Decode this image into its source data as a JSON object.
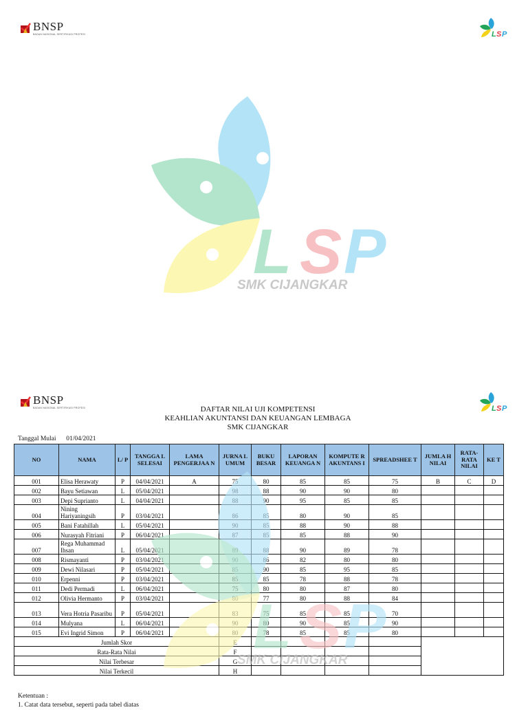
{
  "page1": {
    "header_left_logo": {
      "name": "BNSP",
      "subtitle": "BADAN NASIONAL SERTIFIKASI PROFESI"
    },
    "header_right_logo": {
      "name": "LSP"
    },
    "center_logo": {
      "name": "LSP",
      "caption": "SMK CIJANGKAR"
    }
  },
  "page2": {
    "header_left_logo": {
      "name": "BNSP",
      "subtitle": "BADAN NASIONAL SERTIFIKASI PROFESI"
    },
    "header_right_logo": {
      "name": "LSP"
    },
    "title": {
      "line1": "DAFTAR NILAI UJI KOMPETENSI",
      "line2": "KEAHLIAN AKUNTANSI DAN KEUANGAN LEMBAGA",
      "line3": "SMK CIJANGKAR"
    },
    "start_date": {
      "label": "Tanggal Mulai",
      "value": "01/04/2021"
    },
    "table": {
      "headers": [
        "NO",
        "NAMA",
        "L/ P",
        "TANGGA L SELESAI",
        "LAMA PENGERJAA N",
        "JURNA L UMUM",
        "BUKU BESAR",
        "LAPORAN KEUANGA N",
        "KOMPUTE R AKUNTANS I",
        "SPREADSHEE T",
        "JUMLA H NILAI",
        "RATA-RATA NILAI",
        "KE T"
      ],
      "rows": [
        {
          "no": "001",
          "nama": "Elisa Herawaty",
          "lp": "P",
          "tanggal": "04/04/2021",
          "lama": "A",
          "jurnal": "75",
          "buku": "80",
          "laporan": "85",
          "komputer": "85",
          "spreadsheet": "75",
          "jumlah": "B",
          "rata": "C",
          "ket": "D"
        },
        {
          "no": "002",
          "nama": "Bayu Setiawan",
          "lp": "L",
          "tanggal": "05/04/2021",
          "lama": "",
          "jurnal": "98",
          "buku": "88",
          "laporan": "90",
          "komputer": "90",
          "spreadsheet": "80",
          "jumlah": "",
          "rata": "",
          "ket": ""
        },
        {
          "no": "003",
          "nama": "Depi Suprianto",
          "lp": "L",
          "tanggal": "04/04/2021",
          "lama": "",
          "jurnal": "88",
          "buku": "90",
          "laporan": "95",
          "komputer": "85",
          "spreadsheet": "85",
          "jumlah": "",
          "rata": "",
          "ket": ""
        },
        {
          "no": "004",
          "nama": "Nining Hariyaningsih",
          "lp": "P",
          "tanggal": "03/04/2021",
          "lama": "",
          "jurnal": "86",
          "buku": "85",
          "laporan": "80",
          "komputer": "90",
          "spreadsheet": "85",
          "jumlah": "",
          "rata": "",
          "ket": ""
        },
        {
          "no": "005",
          "nama": "Bani Fatahillah",
          "lp": "L",
          "tanggal": "05/04/2021",
          "lama": "",
          "jurnal": "90",
          "buku": "85",
          "laporan": "88",
          "komputer": "90",
          "spreadsheet": "88",
          "jumlah": "",
          "rata": "",
          "ket": ""
        },
        {
          "no": "006",
          "nama": "Nurasyah Fitriani",
          "lp": "P",
          "tanggal": "06/04/2021",
          "lama": "",
          "jurnal": "87",
          "buku": "85",
          "laporan": "85",
          "komputer": "88",
          "spreadsheet": "90",
          "jumlah": "",
          "rata": "",
          "ket": ""
        },
        {
          "no": "007",
          "nama": "Rega Muhammad Ihsan",
          "lp": "L",
          "tanggal": "05/04/2021",
          "lama": "",
          "jurnal": "89",
          "buku": "88",
          "laporan": "90",
          "komputer": "89",
          "spreadsheet": "78",
          "jumlah": "",
          "rata": "",
          "ket": ""
        },
        {
          "no": "008",
          "nama": "Rismayanti",
          "lp": "P",
          "tanggal": "03/04/2021",
          "lama": "",
          "jurnal": "90",
          "buku": "86",
          "laporan": "82",
          "komputer": "80",
          "spreadsheet": "80",
          "jumlah": "",
          "rata": "",
          "ket": ""
        },
        {
          "no": "009",
          "nama": "Dewi Nilasari",
          "lp": "P",
          "tanggal": "05/04/2021",
          "lama": "",
          "jurnal": "85",
          "buku": "90",
          "laporan": "85",
          "komputer": "95",
          "spreadsheet": "85",
          "jumlah": "",
          "rata": "",
          "ket": ""
        },
        {
          "no": "010",
          "nama": "Erpenni",
          "lp": "P",
          "tanggal": "03/04/2021",
          "lama": "",
          "jurnal": "85",
          "buku": "85",
          "laporan": "78",
          "komputer": "88",
          "spreadsheet": "78",
          "jumlah": "",
          "rata": "",
          "ket": ""
        },
        {
          "no": "011",
          "nama": "Dedi Permadi",
          "lp": "L",
          "tanggal": "06/04/2021",
          "lama": "",
          "jurnal": "75",
          "buku": "80",
          "laporan": "80",
          "komputer": "87",
          "spreadsheet": "80",
          "jumlah": "",
          "rata": "",
          "ket": ""
        },
        {
          "no": "012",
          "nama": "Olivia Hermanto",
          "lp": "P",
          "tanggal": "03/04/2021",
          "lama": "",
          "jurnal": "80",
          "buku": "77",
          "laporan": "80",
          "komputer": "88",
          "spreadsheet": "84",
          "jumlah": "",
          "rata": "",
          "ket": ""
        },
        {
          "no": "013",
          "nama": "Vera Hotria Pasaribu",
          "lp": "P",
          "tanggal": "05/04/2021",
          "lama": "",
          "jurnal": "83",
          "buku": "75",
          "laporan": "85",
          "komputer": "85",
          "spreadsheet": "70",
          "jumlah": "",
          "rata": "",
          "ket": ""
        },
        {
          "no": "014",
          "nama": "Mulyana",
          "lp": "L",
          "tanggal": "06/04/2021",
          "lama": "",
          "jurnal": "90",
          "buku": "80",
          "laporan": "90",
          "komputer": "85",
          "spreadsheet": "90",
          "jumlah": "",
          "rata": "",
          "ket": ""
        },
        {
          "no": "015",
          "nama": "Evi Ingrid Simon",
          "lp": "P",
          "tanggal": "06/04/2021",
          "lama": "",
          "jurnal": "80",
          "buku": "78",
          "laporan": "85",
          "komputer": "85",
          "spreadsheet": "80",
          "jumlah": "",
          "rata": "",
          "ket": ""
        }
      ],
      "summary": [
        {
          "label": "Jumlah Skor",
          "value": "E"
        },
        {
          "label": "Rata-Rata Nilai",
          "value": "F"
        },
        {
          "label": "Nilai Terbesar",
          "value": "G"
        },
        {
          "label": "Nilai Terkecil",
          "value": "H"
        }
      ]
    },
    "notes": {
      "title": "Ketentuan :",
      "item1": "1. Catat data tersebut, seperti pada tabel diatas"
    },
    "watermark_caption": "SMK CIJANGKAR"
  },
  "colors": {
    "header_fill": "#9dc3e6",
    "leaf_blue": "#b3e3f7",
    "leaf_green": "#b3e4cc",
    "leaf_yellow": "#fdf7b4",
    "letter_red": "#f7c0c3",
    "caption_gray": "#c8c8c8"
  }
}
